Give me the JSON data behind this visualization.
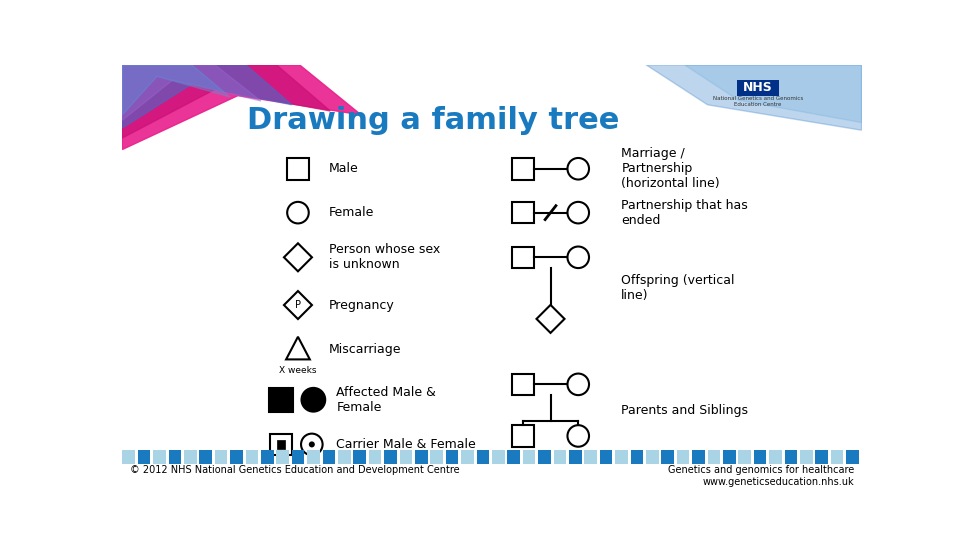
{
  "title": "Drawing a family tree",
  "title_color": "#1a7abf",
  "title_fontsize": 22,
  "bg_color": "#ffffff",
  "footer_left": "© 2012 NHS National Genetics Education and Development Centre",
  "footer_right": "Genetics and genomics for healthcare\nwww.geneticseducation.nhs.uk",
  "footer_fontsize": 7,
  "labels": {
    "male": "Male",
    "female": "Female",
    "unknown": "Person whose sex\nis unknown",
    "pregnancy": "Pregnancy",
    "miscarriage": "Miscarriage",
    "miscarriage_sub": "X weeks",
    "affected": "Affected Male &\nFemale",
    "carrier": "Carrier Male & Female",
    "marriage": "Marriage /\nPartnership\n(horizontal line)",
    "partnership_ended": "Partnership that has\nended",
    "offspring": "Offspring (vertical\nline)",
    "parents_siblings": "Parents and Siblings"
  },
  "label_fontsize": 9,
  "symbol_linewidth": 1.5
}
